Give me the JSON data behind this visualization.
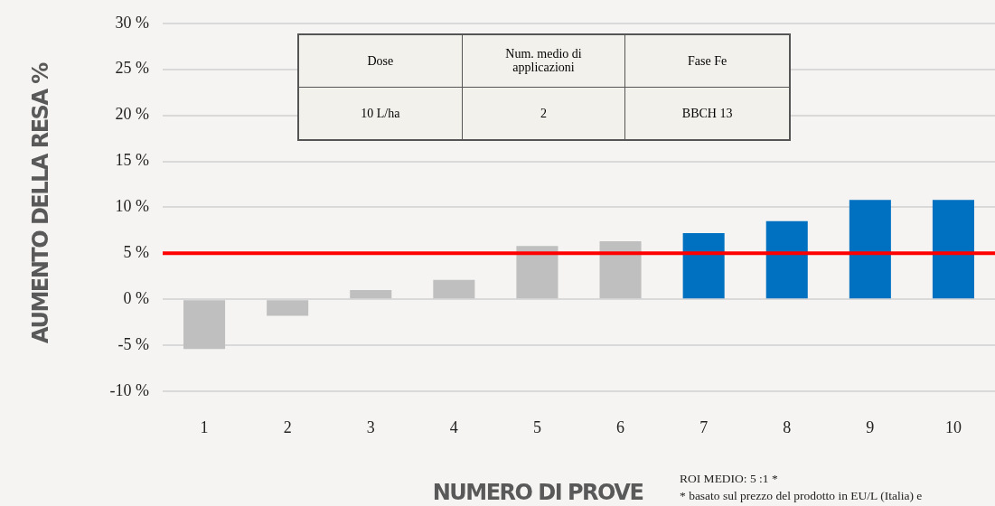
{
  "chart_data": {
    "type": "bar",
    "xlabel": "NUMERO DI PROVE",
    "ylabel": "AUMENTO DELLA RESA %",
    "categories": [
      "1",
      "2",
      "3",
      "4",
      "5",
      "6",
      "7",
      "8",
      "9",
      "10"
    ],
    "values": [
      -5.4,
      -1.8,
      1.0,
      2.1,
      5.8,
      6.3,
      7.2,
      8.5,
      10.8,
      10.8
    ],
    "colors": [
      "#bfbfbf",
      "#bfbfbf",
      "#bfbfbf",
      "#bfbfbf",
      "#bfbfbf",
      "#bfbfbf",
      "#0070c0",
      "#0070c0",
      "#0070c0",
      "#0070c0"
    ],
    "ylim": [
      -10,
      30
    ],
    "yticks": [
      {
        "value": -10,
        "label": "-10 %"
      },
      {
        "value": -5,
        "label": "-5 %"
      },
      {
        "value": 0,
        "label": "0 %"
      },
      {
        "value": 5,
        "label": "5 %"
      },
      {
        "value": 10,
        "label": "10 %"
      },
      {
        "value": 15,
        "label": "15 %"
      },
      {
        "value": 20,
        "label": "20 %"
      },
      {
        "value": 25,
        "label": "25 %"
      },
      {
        "value": 30,
        "label": "30 %"
      }
    ],
    "grid": "y",
    "legend": false,
    "ref_lines": [
      {
        "axis": "y",
        "value": 5,
        "color": "#ff0000"
      }
    ],
    "annotations": [
      "Dose",
      "Num. medio di applicazioni",
      "Fase Fe",
      "10 L/ha",
      "2",
      "BBCH 13",
      "ROI MEDIO: 5 :1 *",
      "* basato sul prezzo del prodotto in EU/L (Italia) e"
    ]
  }
}
